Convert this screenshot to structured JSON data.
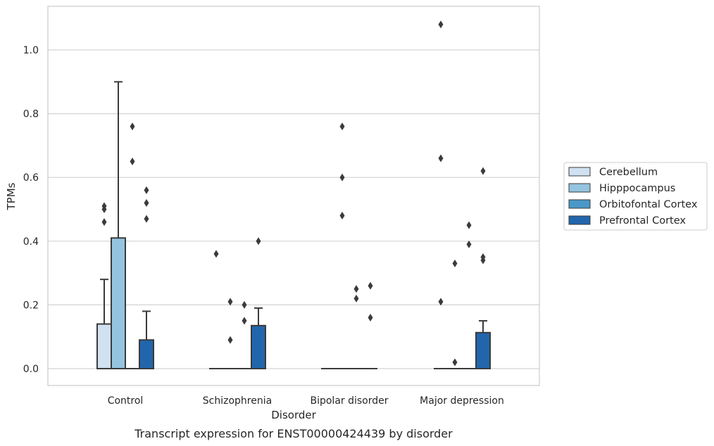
{
  "chart_data": {
    "type": "box",
    "xlabel": "Disorder",
    "ylabel": "TPMs",
    "caption": "Transcript expression for ENST00000424439 by disorder",
    "ylim": [
      -0.05,
      1.14
    ],
    "yticks": [
      0.0,
      0.2,
      0.4,
      0.6,
      0.8,
      1.0
    ],
    "ytick_labels": [
      "0.0",
      "0.2",
      "0.4",
      "0.6",
      "0.8",
      "1.0"
    ],
    "grid": "horizontal",
    "legend_position": "right",
    "categories": [
      "Control",
      "Schizophrenia",
      "Bipolar disorder",
      "Major depression"
    ],
    "series": [
      {
        "name": "Cerebellum",
        "color": "#d0e1f2",
        "boxes": [
          {
            "q1": 0.0,
            "median": 0.0,
            "q3": 0.14,
            "whisker_low": 0.0,
            "whisker_high": 0.28,
            "outliers": [
              0.46,
              0.5,
              0.51
            ]
          },
          {
            "q1": 0.0,
            "median": 0.0,
            "q3": 0.0,
            "whisker_low": 0.0,
            "whisker_high": 0.0,
            "outliers": [
              0.36
            ]
          },
          {
            "q1": 0.0,
            "median": 0.0,
            "q3": 0.0,
            "whisker_low": 0.0,
            "whisker_high": 0.0,
            "outliers": []
          },
          {
            "q1": 0.0,
            "median": 0.0,
            "q3": 0.0,
            "whisker_low": 0.0,
            "whisker_high": 0.0,
            "outliers": [
              0.21,
              0.66,
              1.08
            ]
          }
        ]
      },
      {
        "name": "Hipppocampus",
        "color": "#94c4df",
        "boxes": [
          {
            "q1": 0.0,
            "median": 0.0,
            "q3": 0.41,
            "whisker_low": 0.0,
            "whisker_high": 0.9,
            "outliers": []
          },
          {
            "q1": 0.0,
            "median": 0.0,
            "q3": 0.0,
            "whisker_low": 0.0,
            "whisker_high": 0.0,
            "outliers": [
              0.09,
              0.21
            ]
          },
          {
            "q1": 0.0,
            "median": 0.0,
            "q3": 0.0,
            "whisker_low": 0.0,
            "whisker_high": 0.0,
            "outliers": [
              0.48,
              0.6,
              0.76
            ]
          },
          {
            "q1": 0.0,
            "median": 0.0,
            "q3": 0.0,
            "whisker_low": 0.0,
            "whisker_high": 0.0,
            "outliers": [
              0.02,
              0.33
            ]
          }
        ]
      },
      {
        "name": "Orbitofontal Cortex",
        "color": "#4a98c9",
        "boxes": [
          {
            "q1": 0.0,
            "median": 0.0,
            "q3": 0.0,
            "whisker_low": 0.0,
            "whisker_high": 0.0,
            "outliers": [
              0.65,
              0.76
            ]
          },
          {
            "q1": 0.0,
            "median": 0.0,
            "q3": 0.0,
            "whisker_low": 0.0,
            "whisker_high": 0.0,
            "outliers": [
              0.15,
              0.2
            ]
          },
          {
            "q1": 0.0,
            "median": 0.0,
            "q3": 0.0,
            "whisker_low": 0.0,
            "whisker_high": 0.0,
            "outliers": [
              0.22,
              0.25
            ]
          },
          {
            "q1": 0.0,
            "median": 0.0,
            "q3": 0.0,
            "whisker_low": 0.0,
            "whisker_high": 0.0,
            "outliers": [
              0.39,
              0.45
            ]
          }
        ]
      },
      {
        "name": "Prefrontal Cortex",
        "color": "#2166ac",
        "boxes": [
          {
            "q1": 0.0,
            "median": 0.0,
            "q3": 0.09,
            "whisker_low": 0.0,
            "whisker_high": 0.18,
            "outliers": [
              0.47,
              0.52,
              0.56
            ]
          },
          {
            "q1": 0.0,
            "median": 0.0,
            "q3": 0.135,
            "whisker_low": 0.0,
            "whisker_high": 0.19,
            "outliers": [
              0.4
            ]
          },
          {
            "q1": 0.0,
            "median": 0.0,
            "q3": 0.0,
            "whisker_low": 0.0,
            "whisker_high": 0.0,
            "outliers": [
              0.16,
              0.26
            ]
          },
          {
            "q1": 0.0,
            "median": 0.0,
            "q3": 0.113,
            "whisker_low": 0.0,
            "whisker_high": 0.15,
            "outliers": [
              0.34,
              0.35,
              0.62
            ]
          }
        ]
      }
    ]
  }
}
